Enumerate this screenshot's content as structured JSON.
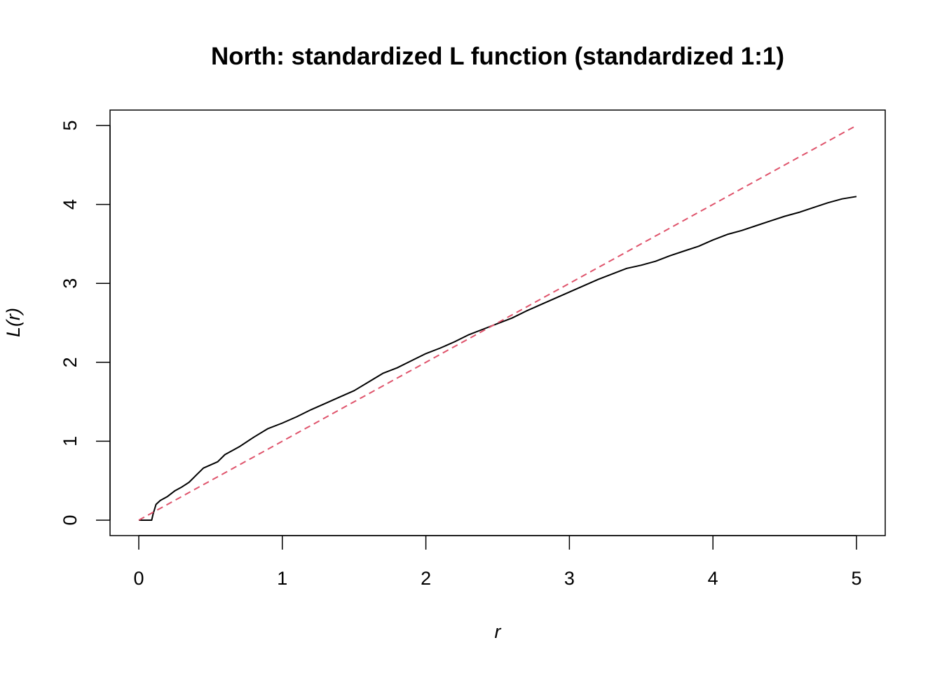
{
  "chart_data": {
    "type": "line",
    "title": "North: standardized L function (standardized 1:1)",
    "xlabel": "r",
    "ylabel": "L(r)",
    "xlim": [
      0,
      5
    ],
    "ylim": [
      0,
      5
    ],
    "x_ticks": [
      "0",
      "1",
      "2",
      "3",
      "4",
      "5"
    ],
    "y_ticks": [
      "0",
      "1",
      "2",
      "3",
      "4",
      "5"
    ],
    "grid": false,
    "legend": "none",
    "series": [
      {
        "style": "solid",
        "color": "#000000",
        "x": [
          0,
          0.09,
          0.1,
          0.12,
          0.15,
          0.2,
          0.25,
          0.3,
          0.35,
          0.4,
          0.45,
          0.5,
          0.55,
          0.6,
          0.7,
          0.8,
          0.9,
          1.0,
          1.1,
          1.2,
          1.3,
          1.4,
          1.5,
          1.6,
          1.7,
          1.8,
          1.9,
          2.0,
          2.1,
          2.2,
          2.3,
          2.4,
          2.5,
          2.6,
          2.7,
          2.8,
          2.9,
          3.0,
          3.1,
          3.2,
          3.3,
          3.4,
          3.5,
          3.6,
          3.7,
          3.8,
          3.9,
          4.0,
          4.1,
          4.2,
          4.3,
          4.4,
          4.5,
          4.6,
          4.7,
          4.8,
          4.9,
          5.0
        ],
        "y": [
          0,
          0,
          0.08,
          0.2,
          0.25,
          0.3,
          0.37,
          0.42,
          0.48,
          0.57,
          0.66,
          0.7,
          0.74,
          0.83,
          0.93,
          1.05,
          1.16,
          1.23,
          1.31,
          1.4,
          1.48,
          1.56,
          1.64,
          1.75,
          1.86,
          1.93,
          2.02,
          2.11,
          2.18,
          2.26,
          2.35,
          2.42,
          2.49,
          2.56,
          2.65,
          2.73,
          2.81,
          2.89,
          2.97,
          3.05,
          3.12,
          3.19,
          3.23,
          3.28,
          3.35,
          3.41,
          3.47,
          3.55,
          3.62,
          3.67,
          3.73,
          3.79,
          3.85,
          3.9,
          3.96,
          4.02,
          4.07,
          4.1
        ]
      },
      {
        "style": "dashed",
        "color": "#DF536B",
        "x": [
          0,
          5
        ],
        "y": [
          0,
          5
        ]
      }
    ]
  }
}
